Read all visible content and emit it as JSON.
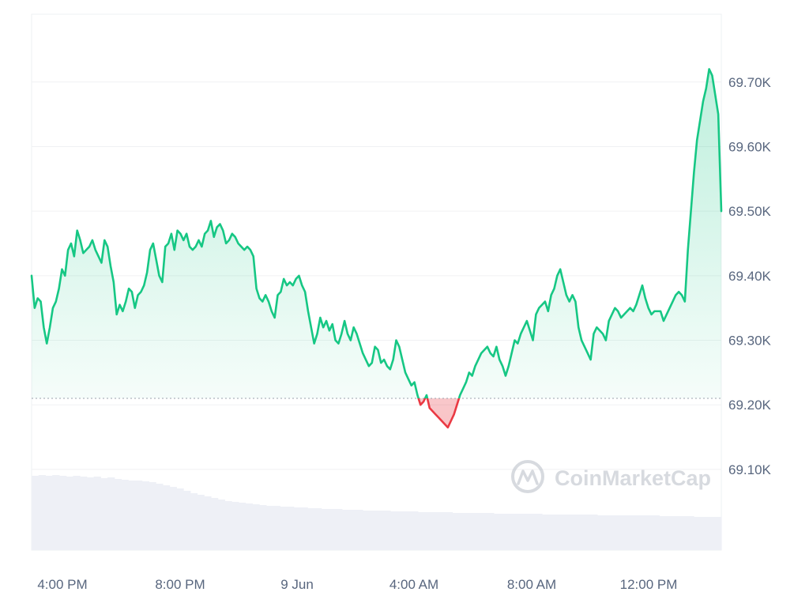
{
  "chart_data": {
    "type": "area",
    "title": "",
    "xlabel": "",
    "ylabel": "",
    "x_tick_labels": [
      "4:00 PM",
      "8:00 PM",
      "9 Jun",
      "4:00 AM",
      "8:00 AM",
      "12:00 PM"
    ],
    "y_tick_labels": [
      "69.10K",
      "69.20K",
      "69.30K",
      "69.40K",
      "69.50K",
      "69.60K",
      "69.70K"
    ],
    "y_ticks": [
      69100,
      69200,
      69300,
      69400,
      69500,
      69600,
      69700
    ],
    "ylim": [
      68975,
      69805
    ],
    "reference_value": 69210,
    "grid": true,
    "watermark": "CoinMarketCap",
    "colors": {
      "above": "#16c784",
      "below": "#ea3943",
      "volume": "#eef0f6",
      "grid": "#f0f1f3",
      "axis_text": "#58667e"
    },
    "series": [
      {
        "values": [
          69400,
          69350,
          69365,
          69360,
          69320,
          69295,
          69320,
          69350,
          69360,
          69380,
          69410,
          69400,
          69440,
          69450,
          69430,
          69470,
          69455,
          69435,
          69440,
          69445,
          69455,
          69440,
          69430,
          69420,
          69455,
          69445,
          69415,
          69390,
          69340,
          69355,
          69345,
          69360,
          69380,
          69375,
          69350,
          69370,
          69375,
          69385,
          69405,
          69440,
          69450,
          69425,
          69400,
          69390,
          69445,
          69450,
          69465,
          69440,
          69470,
          69465,
          69455,
          69465,
          69445,
          69440,
          69445,
          69455,
          69445,
          69465,
          69470,
          69485,
          69460,
          69475,
          69480,
          69470,
          69450,
          69455,
          69465,
          69460,
          69450,
          69445,
          69440,
          69445,
          69440,
          69430,
          69380,
          69365,
          69360,
          69370,
          69360,
          69345,
          69335,
          69370,
          69375,
          69395,
          69385,
          69390,
          69385,
          69395,
          69400,
          69385,
          69375,
          69345,
          69320,
          69295,
          69310,
          69335,
          69320,
          69330,
          69315,
          69325,
          69300,
          69295,
          69310,
          69330,
          69310,
          69300,
          69320,
          69310,
          69295,
          69280,
          69270,
          69260,
          69265,
          69290,
          69285,
          69265,
          69270,
          69260,
          69255,
          69270,
          69300,
          69290,
          69270,
          69250,
          69240,
          69230,
          69235,
          69215,
          69200,
          69205,
          69215,
          69195,
          69190,
          69185,
          69180,
          69175,
          69170,
          69165,
          69175,
          69185,
          69200,
          69215,
          69225,
          69235,
          69250,
          69245,
          69260,
          69270,
          69280,
          69285,
          69290,
          69280,
          69275,
          69290,
          69270,
          69260,
          69245,
          69260,
          69280,
          69300,
          69295,
          69310,
          69320,
          69330,
          69315,
          69300,
          69340,
          69350,
          69355,
          69360,
          69345,
          69370,
          69380,
          69400,
          69410,
          69390,
          69370,
          69360,
          69370,
          69360,
          69320,
          69300,
          69290,
          69280,
          69270,
          69310,
          69320,
          69315,
          69310,
          69300,
          69330,
          69340,
          69350,
          69345,
          69335,
          69340,
          69345,
          69350,
          69345,
          69355,
          69370,
          69385,
          69365,
          69350,
          69340,
          69345,
          69345,
          69345,
          69330,
          69340,
          69350,
          69360,
          69370,
          69375,
          69370,
          69360,
          69440,
          69500,
          69560,
          69610,
          69640,
          69670,
          69690,
          69720,
          69710,
          69680,
          69650,
          69500
        ]
      }
    ],
    "volume": [
      0.94,
      0.95,
      0.94,
      0.95,
      0.94,
      0.93,
      0.94,
      0.93,
      0.92,
      0.93,
      0.91,
      0.92,
      0.9,
      0.89,
      0.88,
      0.88,
      0.87,
      0.86,
      0.84,
      0.82,
      0.8,
      0.78,
      0.75,
      0.72,
      0.7,
      0.68,
      0.66,
      0.64,
      0.62,
      0.61,
      0.6,
      0.59,
      0.58,
      0.57,
      0.56,
      0.56,
      0.55,
      0.55,
      0.54,
      0.54,
      0.53,
      0.53,
      0.52,
      0.52,
      0.52,
      0.51,
      0.51,
      0.51,
      0.5,
      0.5,
      0.5,
      0.5,
      0.49,
      0.49,
      0.49,
      0.49,
      0.48,
      0.48,
      0.48,
      0.48,
      0.48,
      0.47,
      0.47,
      0.47,
      0.47,
      0.47,
      0.47,
      0.46,
      0.46,
      0.46,
      0.46,
      0.46,
      0.46,
      0.46,
      0.45,
      0.45,
      0.45,
      0.45,
      0.45,
      0.45,
      0.45,
      0.45,
      0.44,
      0.44,
      0.44,
      0.44,
      0.44,
      0.44,
      0.44,
      0.44,
      0.44,
      0.43,
      0.43,
      0.43,
      0.43,
      0.43,
      0.42,
      0.42,
      0.42,
      0.42
    ]
  }
}
